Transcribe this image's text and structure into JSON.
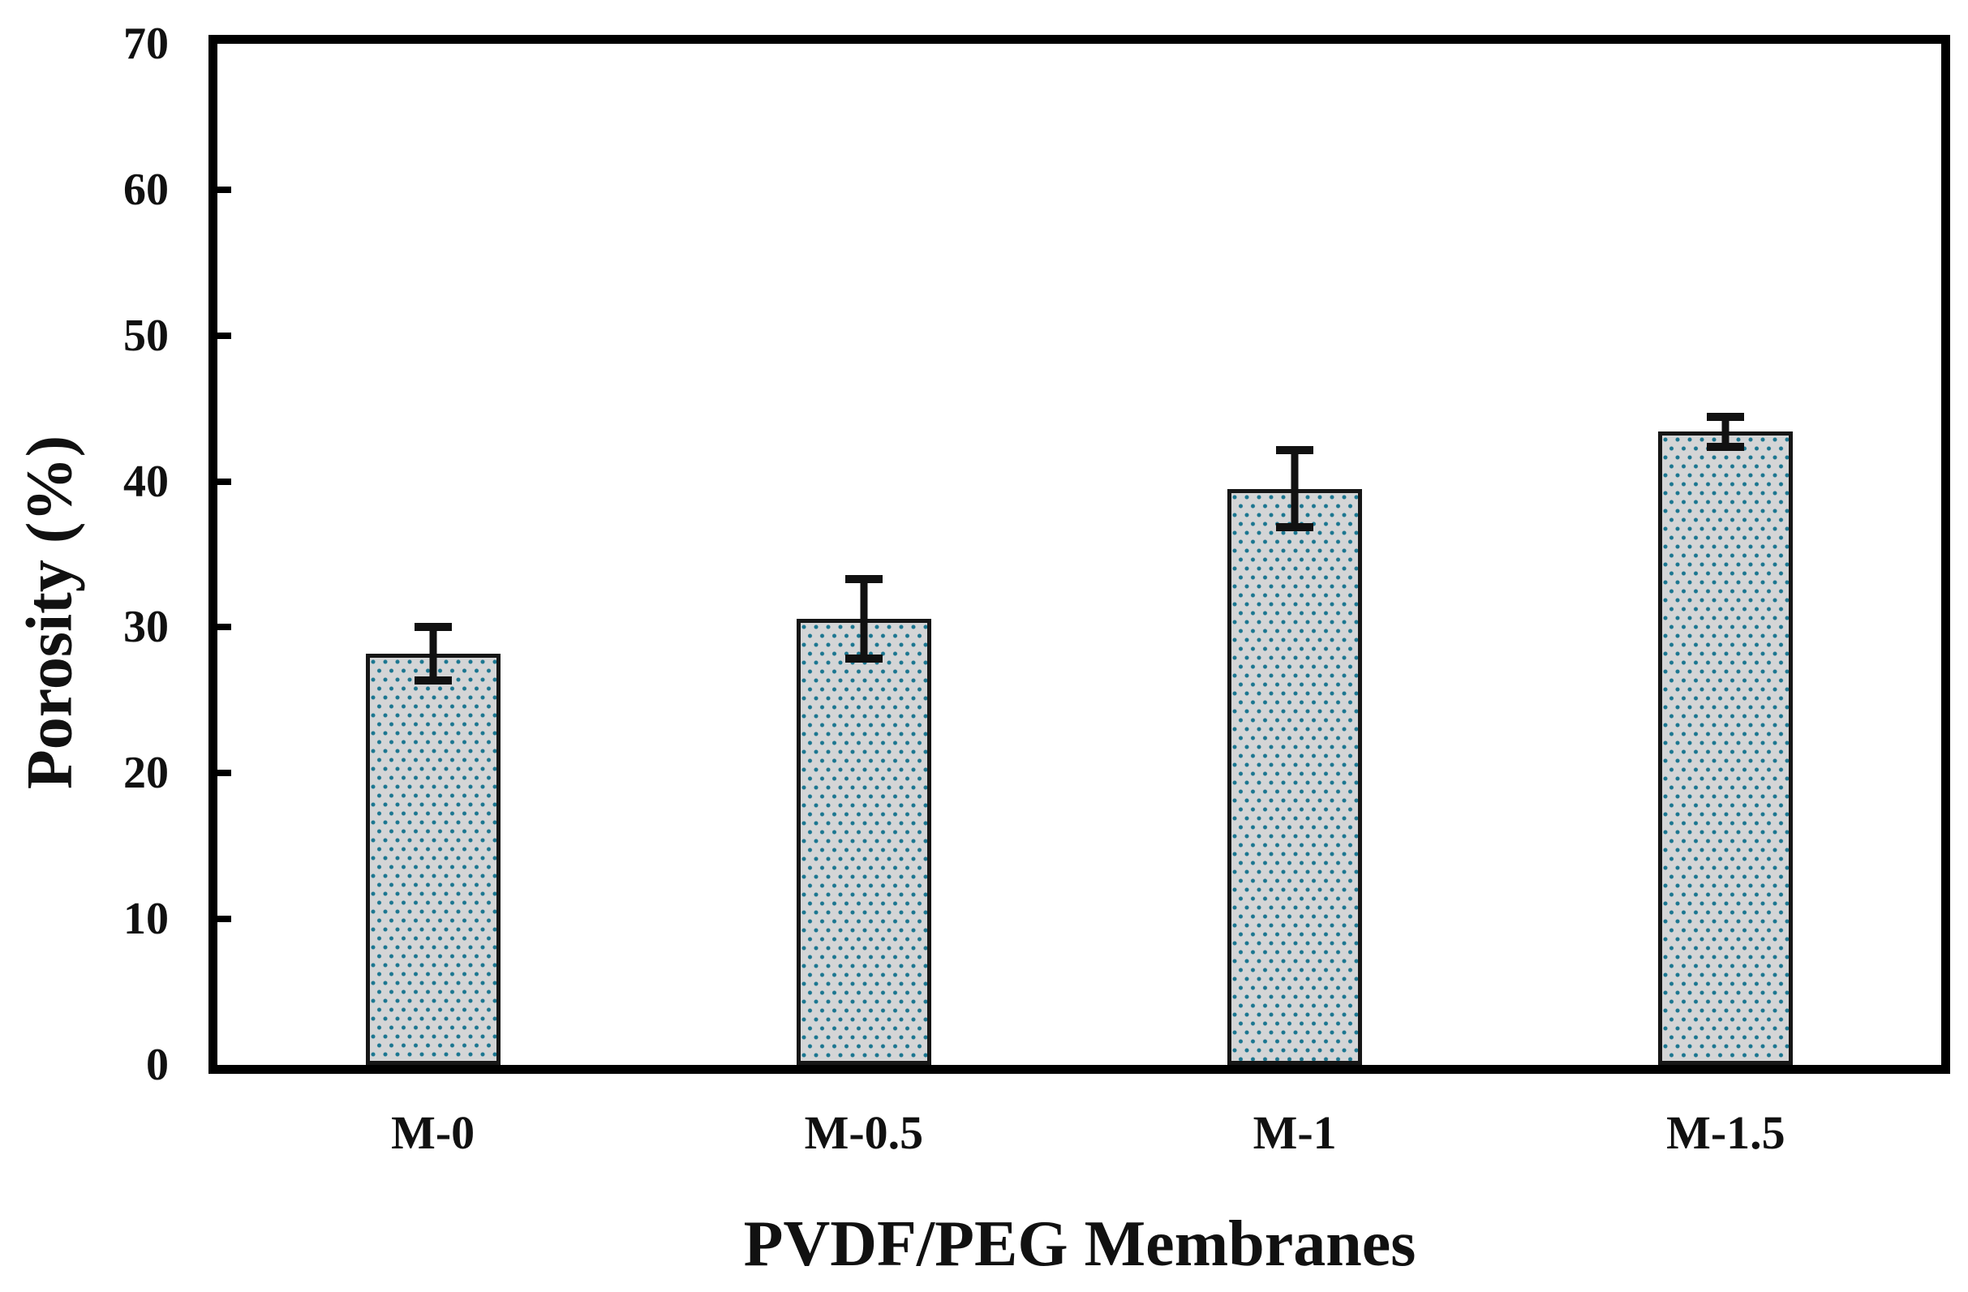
{
  "chart_data": {
    "type": "bar",
    "title": "",
    "categories": [
      "M-0",
      "M-0.5",
      "M-1",
      "M-1.5"
    ],
    "values": [
      28.2,
      30.6,
      39.5,
      43.4
    ],
    "errors": [
      2.1,
      3.0,
      2.9,
      1.3
    ],
    "xlabel": "PVDF/PEG Membranes",
    "ylabel": "Porosity (%)",
    "ylim": [
      0,
      70
    ],
    "yticks": [
      0,
      10,
      20,
      30,
      40,
      50,
      60,
      70
    ],
    "ytick_interval": 10,
    "grid": false,
    "legend": false,
    "bar_fill_color": "#d4d5d6",
    "bar_dot_color": "#1b7690",
    "bar_border_color": "#161616",
    "axis_frame_color": "#000000",
    "error_bar_color": "#111111"
  }
}
